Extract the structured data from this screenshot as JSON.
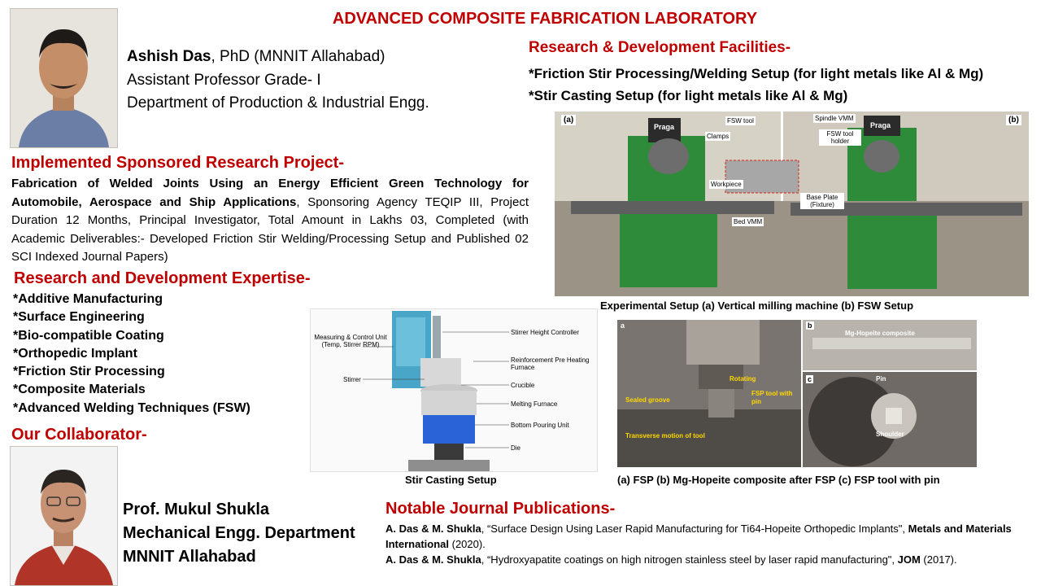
{
  "title": "ADVANCED COMPOSITE FABRICATION LABORATORY",
  "profile": {
    "name": "Ashish Das",
    "degree": ", PhD (MNNIT Allahabad)",
    "designation": "Assistant Professor Grade- I",
    "department": "Department of Production & Industrial Engg."
  },
  "project": {
    "heading": "Implemented Sponsored Research Project-",
    "title_bold": "Fabrication of Welded Joints Using an Energy Efficient Green Technology for Automobile, Aerospace and Ship Applications",
    "details": ", Sponsoring Agency TEQIP III, Project Duration 12 Months, Principal Investigator, Total Amount in Lakhs 03, Completed (with Academic Deliverables:- Developed Friction Stir Welding/Processing Setup and Published 02 SCI Indexed Journal Papers)"
  },
  "expertise": {
    "heading": "Research and Development Expertise-",
    "items": [
      "*Additive Manufacturing",
      "*Surface Engineering",
      "*Bio-compatible Coating",
      "*Orthopedic Implant",
      "*Friction Stir Processing",
      "*Composite Materials",
      "*Advanced Welding Techniques (FSW)"
    ]
  },
  "collaborator": {
    "heading": "Our Collaborator-",
    "name": "Prof. Mukul Shukla",
    "department": "Mechanical Engg. Department",
    "institute": "MNNIT Allahabad"
  },
  "facilities": {
    "heading": "Research & Development Facilities-",
    "items": [
      "*Friction Stir Processing/Welding  Setup (for light metals like Al & Mg)",
      "*Stir Casting Setup (for light metals like Al & Mg)"
    ]
  },
  "fsw_figure": {
    "caption": "Experimental Setup (a) Vertical milling machine (b) FSW Setup",
    "labels": {
      "a": "(a)",
      "b": "(b)",
      "brand": "Praga",
      "fsw_tool": "FSW tool",
      "spindle": "Spindle VMM",
      "clamps": "Clamps",
      "tool_holder": "FSW tool holder",
      "workpiece": "Workpiece",
      "base_plate": "Base Plate (Fixture)",
      "bed": "Bed VMM"
    }
  },
  "stir_figure": {
    "caption": "Stir Casting Setup",
    "labels": {
      "measuring": "Measuring & Control Unit (Temp, Stirrer RPM)",
      "stirrer": "Stirrer",
      "height": "Stirrer Height Controller",
      "preheat": "Reinforcement Pre Heating Furnace",
      "crucible": "Crucible",
      "melting": "Melting Furnace",
      "bottom": "Bottom Pouring Unit",
      "die": "Die"
    }
  },
  "fsp_figure": {
    "caption": "(a) FSP (b) Mg-Hopeite composite after FSP (c) FSP tool with pin",
    "labels": {
      "a": "a",
      "b": "b",
      "c": "c",
      "composite": "Mg-Hopeite composite",
      "rotating": "Rotating",
      "sealed": "Sealed groove",
      "tool": "FSP tool with pin",
      "transverse": "Transverse motion of tool",
      "pin": "Pin",
      "shoulder": "Shoulder"
    }
  },
  "publications": {
    "heading": "Notable Journal Publications-",
    "items": [
      {
        "authors": "A. Das & M. Shukla",
        "title": ", “Surface Design Using Laser Rapid Manufacturing for Ti64-Hopeite Orthopedic Implants\", ",
        "journal": "Metals and Materials International",
        "year": " (2020)."
      },
      {
        "authors": "A. Das & M. Shukla",
        "title": ", “Hydroxyapatite coatings on high nitrogen stainless steel by laser rapid manufacturing\", ",
        "journal": "JOM",
        "year": "  (2017)."
      }
    ]
  },
  "colors": {
    "heading": "#c00000",
    "machine_green": "#2e8b3a"
  }
}
